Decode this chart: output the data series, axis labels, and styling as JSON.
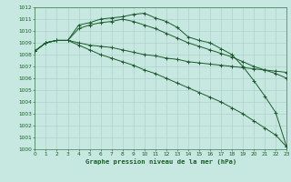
{
  "xlabel": "Graphe pression niveau de la mer (hPa)",
  "ylim": [
    1000,
    1012
  ],
  "xlim": [
    0,
    23
  ],
  "background_color": "#c6e8e0",
  "grid_color": "#a8ccc8",
  "line_color": "#1a5c2a",
  "series": [
    {
      "x": [
        0,
        1,
        2,
        3,
        4,
        5,
        6,
        7,
        8,
        9,
        10,
        11,
        12,
        13,
        14,
        15,
        16,
        17,
        18,
        19,
        20,
        21,
        22,
        23
      ],
      "y": [
        1008.3,
        1009.0,
        1009.2,
        1009.2,
        1010.5,
        1010.7,
        1011.0,
        1011.1,
        1011.2,
        1011.4,
        1011.5,
        1011.1,
        1010.8,
        1010.3,
        1009.5,
        1009.2,
        1009.0,
        1008.5,
        1008.0,
        1007.0,
        1005.8,
        1004.5,
        1003.1,
        1000.2
      ]
    },
    {
      "x": [
        0,
        1,
        2,
        3,
        4,
        5,
        6,
        7,
        8,
        9,
        10,
        11,
        12,
        13,
        14,
        15,
        16,
        17,
        18,
        19,
        20,
        21,
        22,
        23
      ],
      "y": [
        1008.3,
        1009.0,
        1009.2,
        1009.2,
        1010.2,
        1010.5,
        1010.7,
        1010.8,
        1011.0,
        1010.8,
        1010.5,
        1010.2,
        1009.8,
        1009.4,
        1009.0,
        1008.7,
        1008.4,
        1008.1,
        1007.8,
        1007.4,
        1007.0,
        1006.7,
        1006.4,
        1006.0
      ]
    },
    {
      "x": [
        0,
        1,
        2,
        3,
        4,
        5,
        6,
        7,
        8,
        9,
        10,
        11,
        12,
        13,
        14,
        15,
        16,
        17,
        18,
        19,
        20,
        21,
        22,
        23
      ],
      "y": [
        1008.3,
        1009.0,
        1009.2,
        1009.2,
        1009.0,
        1008.8,
        1008.7,
        1008.6,
        1008.4,
        1008.2,
        1008.0,
        1007.9,
        1007.7,
        1007.6,
        1007.4,
        1007.3,
        1007.2,
        1007.1,
        1007.0,
        1006.9,
        1006.8,
        1006.7,
        1006.6,
        1006.5
      ]
    },
    {
      "x": [
        0,
        1,
        2,
        3,
        4,
        5,
        6,
        7,
        8,
        9,
        10,
        11,
        12,
        13,
        14,
        15,
        16,
        17,
        18,
        19,
        20,
        21,
        22,
        23
      ],
      "y": [
        1008.3,
        1009.0,
        1009.2,
        1009.2,
        1008.8,
        1008.4,
        1008.0,
        1007.7,
        1007.4,
        1007.1,
        1006.7,
        1006.4,
        1006.0,
        1005.6,
        1005.2,
        1004.8,
        1004.4,
        1004.0,
        1003.5,
        1003.0,
        1002.4,
        1001.8,
        1001.2,
        1000.2
      ]
    }
  ],
  "yticks": [
    1000,
    1001,
    1002,
    1003,
    1004,
    1005,
    1006,
    1007,
    1008,
    1009,
    1010,
    1011,
    1012
  ],
  "xticks": [
    0,
    1,
    2,
    3,
    4,
    5,
    6,
    7,
    8,
    9,
    10,
    11,
    12,
    13,
    14,
    15,
    16,
    17,
    18,
    19,
    20,
    21,
    22,
    23
  ],
  "tick_fontsize": 4.2,
  "label_fontsize": 5.2,
  "linewidth": 0.7,
  "markersize": 2.5,
  "markeredgewidth": 0.7
}
